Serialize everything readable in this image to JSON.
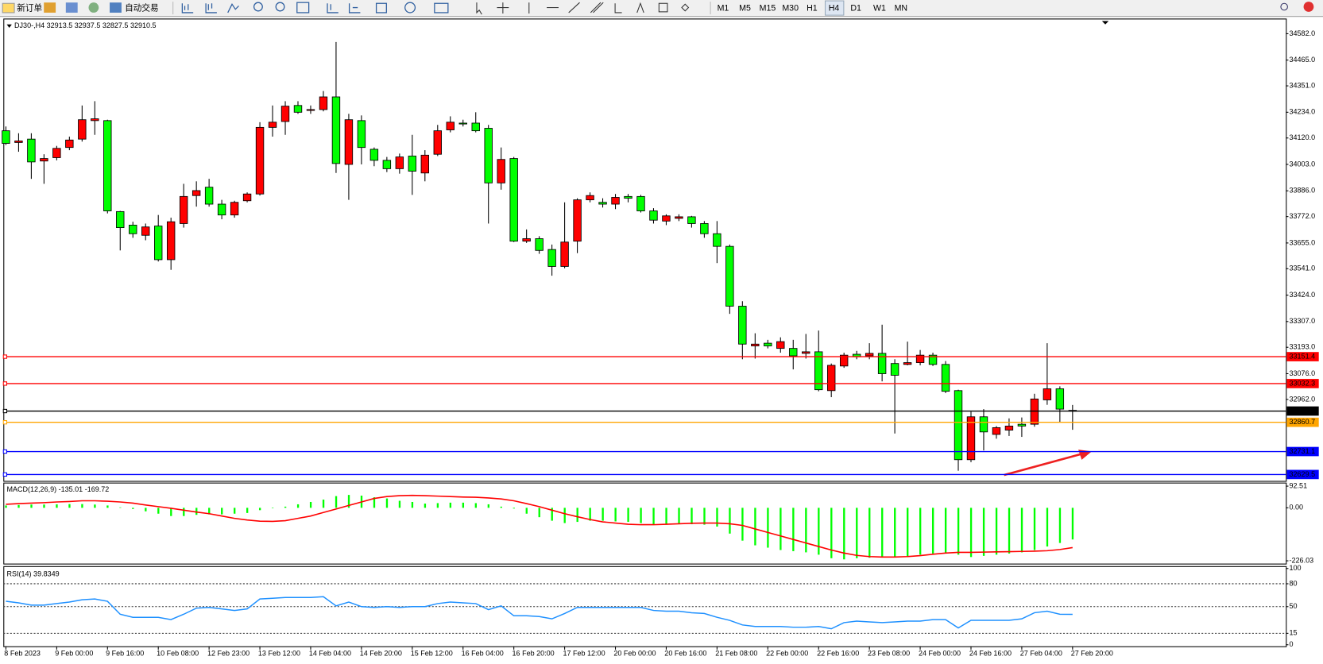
{
  "toolbar": {
    "buttons": [
      "新订单",
      "自动交易"
    ],
    "timeframes": [
      "M1",
      "M5",
      "M15",
      "M30",
      "H1",
      "H4",
      "D1",
      "W1",
      "MN"
    ]
  },
  "chart_data": [
    {
      "type": "candlestick",
      "title": "DJ30-,H4",
      "categories": [
        "8 Feb 2023",
        null,
        null,
        null,
        "9 Feb 00:00",
        null,
        null,
        null,
        "9 Feb 16:00",
        null,
        null,
        null,
        "10 Feb 08:00",
        null,
        null,
        null,
        "12 Feb 23:00",
        null,
        null,
        null,
        "13 Feb 12:00",
        null,
        null,
        null,
        "14 Feb 04:00",
        null,
        null,
        null,
        "14 Feb 20:00",
        null,
        null,
        null,
        "15 Feb 12:00",
        null,
        null,
        null,
        "16 Feb 04:00",
        null,
        null,
        null,
        "16 Feb 20:00",
        null,
        null,
        null,
        "17 Feb 12:00",
        null,
        null,
        null,
        "20 Feb 00:00",
        null,
        null,
        null,
        "20 Feb 16:00",
        null,
        null,
        null,
        "21 Feb 08:00",
        null,
        null,
        null,
        "22 Feb 00:00",
        null,
        null,
        null,
        "22 Feb 16:00",
        null,
        null,
        null,
        "23 Feb 08:00",
        null,
        null,
        null,
        "24 Feb 00:00",
        null,
        null,
        null,
        "24 Feb 16:00",
        null,
        null,
        null,
        "27 Feb 04:00",
        null,
        null,
        null,
        "27 Feb 20:00"
      ],
      "ohlc": [
        [
          34152,
          34171,
          34089,
          34096
        ],
        [
          34100,
          34141,
          34059,
          34107
        ],
        [
          34115,
          34141,
          33939,
          34014
        ],
        [
          34018,
          34048,
          33917,
          34029
        ],
        [
          34033,
          34085,
          34021,
          34074
        ],
        [
          34078,
          34126,
          34066,
          34111
        ],
        [
          34115,
          34264,
          34104,
          34201
        ],
        [
          34197,
          34283,
          34134,
          34205
        ],
        [
          34197,
          34201,
          33786,
          33797
        ],
        [
          33794,
          33797,
          33622,
          33723
        ],
        [
          33734,
          33749,
          33678,
          33696
        ],
        [
          33689,
          33741,
          33667,
          33726
        ],
        [
          33730,
          33779,
          33573,
          33581
        ],
        [
          33581,
          33767,
          33536,
          33749
        ],
        [
          33741,
          33917,
          33723,
          33861
        ],
        [
          33865,
          33928,
          33816,
          33887
        ],
        [
          33902,
          33939,
          33816,
          33827
        ],
        [
          33827,
          33846,
          33760,
          33779
        ],
        [
          33779,
          33842,
          33767,
          33835
        ],
        [
          33842,
          33879,
          33835,
          33872
        ],
        [
          33872,
          34190,
          33865,
          34167
        ],
        [
          34167,
          34264,
          34126,
          34190
        ],
        [
          34193,
          34283,
          34134,
          34261
        ],
        [
          34264,
          34283,
          34227,
          34234
        ],
        [
          34242,
          34264,
          34227,
          34246
        ],
        [
          34246,
          34328,
          34238,
          34302
        ],
        [
          34302,
          34545,
          33965,
          34007
        ],
        [
          34003,
          34227,
          33846,
          34201
        ],
        [
          34197,
          34220,
          34003,
          34078
        ],
        [
          34070,
          34078,
          33995,
          34021
        ],
        [
          34021,
          34036,
          33969,
          33984
        ],
        [
          33984,
          34051,
          33962,
          34036
        ],
        [
          34040,
          34134,
          33868,
          33973
        ],
        [
          33965,
          34066,
          33928,
          34044
        ],
        [
          34048,
          34178,
          34040,
          34152
        ],
        [
          34156,
          34216,
          34145,
          34190
        ],
        [
          34186,
          34201,
          34171,
          34182
        ],
        [
          34186,
          34234,
          34145,
          34152
        ],
        [
          34163,
          34178,
          33741,
          33921
        ],
        [
          33921,
          34078,
          33891,
          34025
        ],
        [
          34029,
          34036,
          33659,
          33663
        ],
        [
          33663,
          33715,
          33655,
          33674
        ],
        [
          33674,
          33685,
          33607,
          33622
        ],
        [
          33626,
          33648,
          33510,
          33551
        ],
        [
          33551,
          33835,
          33543,
          33659
        ],
        [
          33663,
          33853,
          33610,
          33846
        ],
        [
          33846,
          33879,
          33835,
          33865
        ],
        [
          33835,
          33853,
          33812,
          33827
        ],
        [
          33827,
          33872,
          33805,
          33857
        ],
        [
          33861,
          33872,
          33835,
          33853
        ],
        [
          33861,
          33868,
          33790,
          33797
        ],
        [
          33797,
          33809,
          33741,
          33756
        ],
        [
          33752,
          33782,
          33734,
          33775
        ],
        [
          33764,
          33782,
          33752,
          33771
        ],
        [
          33771,
          33775,
          33723,
          33741
        ],
        [
          33741,
          33752,
          33678,
          33696
        ],
        [
          33696,
          33752,
          33566,
          33640
        ],
        [
          33640,
          33648,
          33341,
          33375
        ],
        [
          33375,
          33397,
          33140,
          33207
        ],
        [
          33199,
          33255,
          33143,
          33207
        ],
        [
          33211,
          33226,
          33188,
          33199
        ],
        [
          33188,
          33237,
          33169,
          33218
        ],
        [
          33188,
          33226,
          33095,
          33155
        ],
        [
          33166,
          33252,
          33143,
          33173
        ],
        [
          33173,
          33267,
          32998,
          33005
        ],
        [
          33001,
          33121,
          32972,
          33113
        ],
        [
          33110,
          33169,
          33102,
          33158
        ],
        [
          33162,
          33177,
          33140,
          33151
        ],
        [
          33155,
          33211,
          33140,
          33166
        ],
        [
          33166,
          33293,
          33042,
          33076
        ],
        [
          33121,
          33140,
          32811,
          33069
        ],
        [
          33117,
          33218,
          33113,
          33125
        ],
        [
          33125,
          33181,
          33113,
          33158
        ],
        [
          33158,
          33169,
          33110,
          33117
        ],
        [
          33117,
          33132,
          32990,
          32998
        ],
        [
          33001,
          33005,
          32646,
          32695
        ],
        [
          32695,
          32908,
          32684,
          32885
        ],
        [
          32885,
          32919,
          32736,
          32818
        ],
        [
          32807,
          32844,
          32788,
          32837
        ],
        [
          32826,
          32878,
          32800,
          32844
        ],
        [
          32852,
          32882,
          32796,
          32844
        ],
        [
          32852,
          32987,
          32841,
          32964
        ],
        [
          32960,
          33211,
          32938,
          33009
        ],
        [
          33009,
          33020,
          32863,
          32919
        ],
        [
          32913.5,
          32937.5,
          32827.5,
          32910.5
        ]
      ],
      "up_color": "#ff0000",
      "down_color": "#00ff00",
      "ylim": [
        32601,
        34649
      ],
      "yticks": [
        {
          "value": 34582,
          "label": "34582.0"
        },
        {
          "value": 34465,
          "label": "34465.0"
        },
        {
          "value": 34351,
          "label": "34351.0"
        },
        {
          "value": 34234,
          "label": "34234.0"
        },
        {
          "value": 34120,
          "label": "34120.0"
        },
        {
          "value": 34003,
          "label": "34003.0"
        },
        {
          "value": 33886,
          "label": "33886.0"
        },
        {
          "value": 33772,
          "label": "33772.0"
        },
        {
          "value": 33655,
          "label": "33655.0"
        },
        {
          "value": 33541,
          "label": "33541.0"
        },
        {
          "value": 33424,
          "label": "33424.0"
        },
        {
          "value": 33307,
          "label": "33307.0"
        },
        {
          "value": 33193,
          "label": "33193.0"
        },
        {
          "value": 33076,
          "label": "33076.0"
        },
        {
          "value": 32962,
          "label": "32962.0"
        }
      ],
      "hlines": [
        {
          "value": 33151.4,
          "color": "#ff0000"
        },
        {
          "value": 33032.3,
          "color": "#ff0000"
        },
        {
          "value": 32910.5,
          "color": "#000000"
        },
        {
          "value": 32860.7,
          "color": "#ffa500"
        },
        {
          "value": 32731.1,
          "color": "#0000ff"
        },
        {
          "value": 32629.5,
          "color": "#0000ff"
        }
      ]
    },
    {
      "type": "macd",
      "title": "MACD(12,26,9)",
      "series": [
        {
          "color": "#00ff00",
          "values": [
            10,
            12,
            14,
            14,
            15,
            16,
            16,
            14,
            10,
            2,
            -5,
            -15,
            -25,
            -35,
            -35,
            -30,
            -28,
            -28,
            -25,
            -22,
            -10,
            -2,
            5,
            15,
            25,
            35,
            50,
            55,
            52,
            45,
            40,
            30,
            25,
            18,
            20,
            22,
            22,
            20,
            15,
            5,
            -3,
            -25,
            -40,
            -55,
            -65,
            -60,
            -55,
            -55,
            -58,
            -60,
            -65,
            -70,
            -72,
            -70,
            -70,
            -72,
            -80,
            -110,
            -140,
            -160,
            -170,
            -180,
            -185,
            -190,
            -200,
            -215,
            -220,
            -215,
            -213,
            -210,
            -210,
            -210,
            -200,
            -195,
            -195,
            -200,
            -210,
            -205,
            -200,
            -195,
            -190,
            -180,
            -165,
            -150,
            -135.01
          ]
        },
        {
          "color": "#ff0000",
          "values": [
            15,
            18,
            20,
            22,
            25,
            27,
            30,
            30,
            28,
            25,
            20,
            12,
            5,
            -2,
            -10,
            -18,
            -25,
            -35,
            -45,
            -52,
            -57,
            -58,
            -55,
            -45,
            -35,
            -20,
            -5,
            10,
            25,
            40,
            48,
            52,
            53,
            52,
            50,
            48,
            46,
            45,
            42,
            38,
            30,
            18,
            5,
            -10,
            -25,
            -38,
            -50,
            -60,
            -65,
            -70,
            -72,
            -72,
            -70,
            -68,
            -66,
            -65,
            -65,
            -68,
            -75,
            -90,
            -105,
            -120,
            -135,
            -150,
            -165,
            -180,
            -193,
            -203,
            -208,
            -210,
            -210,
            -208,
            -204,
            -198,
            -193,
            -190,
            -190,
            -189,
            -188,
            -187,
            -186,
            -185,
            -183,
            -178,
            -169.72
          ]
        }
      ],
      "ylim": [
        -238,
        104
      ],
      "yticks": [
        {
          "value": 92.51,
          "label": "92.51"
        },
        {
          "value": 0,
          "label": "0.00"
        },
        {
          "value": -226.03,
          "label": "-226.03"
        }
      ]
    },
    {
      "type": "rsi",
      "title": "RSI(14)",
      "series": [
        {
          "color": "#1e90ff",
          "values": [
            57,
            55,
            52,
            52,
            54,
            56,
            59,
            60,
            57,
            40,
            36,
            36,
            36,
            33,
            40,
            48,
            49,
            47,
            45,
            47,
            60,
            61,
            62,
            62,
            62,
            63,
            51,
            56,
            50,
            49,
            50,
            49,
            50,
            50,
            54,
            56,
            55,
            54,
            46,
            51,
            38,
            38,
            37,
            34,
            41,
            49,
            49,
            49,
            49,
            49,
            49,
            45,
            44,
            44,
            42,
            41,
            36,
            32,
            26,
            24,
            24,
            24,
            23,
            23,
            24,
            21,
            29,
            31,
            30,
            29,
            30,
            31,
            31,
            33,
            33,
            22,
            32,
            32,
            32,
            32,
            34,
            42,
            44,
            40,
            39.8349
          ]
        }
      ],
      "ylim": [
        -2,
        102
      ],
      "yticks": [
        100,
        80,
        50,
        15,
        0
      ],
      "levels": [
        80,
        50,
        15
      ]
    }
  ]
}
